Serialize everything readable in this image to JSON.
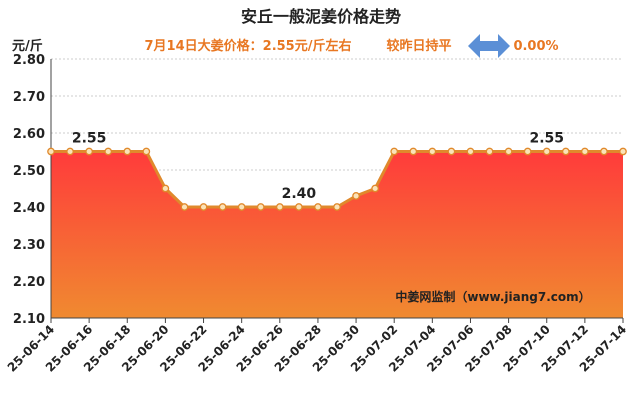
{
  "chart_data": {
    "type": "area",
    "title": "安丘一般泥姜价格走势",
    "subtitle": "7月14日大姜价格：2.55元/斤左右",
    "compare_label": "较昨日持平",
    "change_value": "0.00%",
    "ylabel": "元/斤",
    "ylim": [
      2.1,
      2.8
    ],
    "yticks": [
      "2.10",
      "2.20",
      "2.30",
      "2.40",
      "2.50",
      "2.60",
      "2.70",
      "2.80"
    ],
    "grid": true,
    "x": [
      "25-06-14",
      "25-06-15",
      "25-06-16",
      "25-06-17",
      "25-06-18",
      "25-06-19",
      "25-06-20",
      "25-06-21",
      "25-06-22",
      "25-06-23",
      "25-06-24",
      "25-06-25",
      "25-06-26",
      "25-06-27",
      "25-06-28",
      "25-06-29",
      "25-06-30",
      "25-07-01",
      "25-07-02",
      "25-07-03",
      "25-07-04",
      "25-07-05",
      "25-07-06",
      "25-07-07",
      "25-07-08",
      "25-07-09",
      "25-07-10",
      "25-07-11",
      "25-07-12",
      "25-07-13",
      "25-07-14"
    ],
    "xtick_labels": [
      "25-06-14",
      "25-06-16",
      "25-06-18",
      "25-06-20",
      "25-06-22",
      "25-06-24",
      "25-06-26",
      "25-06-28",
      "25-06-30",
      "25-07-02",
      "25-07-04",
      "25-07-06",
      "25-07-08",
      "25-07-10",
      "25-07-12",
      "25-07-14"
    ],
    "series": [
      {
        "values": [
          2.55,
          2.55,
          2.55,
          2.55,
          2.55,
          2.55,
          2.45,
          2.4,
          2.4,
          2.4,
          2.4,
          2.4,
          2.4,
          2.4,
          2.4,
          2.4,
          2.43,
          2.45,
          2.55,
          2.55,
          2.55,
          2.55,
          2.55,
          2.55,
          2.55,
          2.55,
          2.55,
          2.55,
          2.55,
          2.55,
          2.55
        ]
      }
    ],
    "annotations": [
      {
        "label": "2.55",
        "x": "25-06-16",
        "y": 2.55
      },
      {
        "label": "2.40",
        "x": "25-06-27",
        "y": 2.4
      },
      {
        "label": "2.55",
        "x": "25-07-10",
        "y": 2.55
      }
    ],
    "watermark": "中姜网监制（www.jiang7.com）",
    "colors": {
      "line": "#e0892c",
      "marker_fill": "#fbe3b8",
      "area_top": "#ff3b3b",
      "area_bottom": "#f08a30",
      "arrow": "#5b8fd6",
      "grid": "#cccccc"
    }
  }
}
